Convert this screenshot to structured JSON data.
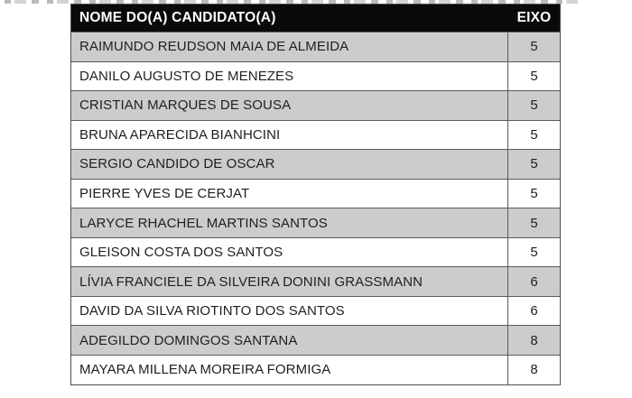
{
  "table": {
    "header": {
      "name_label": "NOME DO(A) CANDIDATO(A)",
      "eixo_label": "EIXO"
    },
    "rows": [
      {
        "name": "RAIMUNDO REUDSON MAIA DE ALMEIDA",
        "eixo": "5"
      },
      {
        "name": "DANILO AUGUSTO DE MENEZES",
        "eixo": "5"
      },
      {
        "name": "CRISTIAN MARQUES DE SOUSA",
        "eixo": "5"
      },
      {
        "name": "BRUNA APARECIDA BIANHCINI",
        "eixo": "5"
      },
      {
        "name": "SERGIO CANDIDO DE OSCAR",
        "eixo": "5"
      },
      {
        "name": "PIERRE YVES DE CERJAT",
        "eixo": "5"
      },
      {
        "name": "LARYCE RHACHEL MARTINS SANTOS",
        "eixo": "5"
      },
      {
        "name": "GLEISON COSTA DOS SANTOS",
        "eixo": "5"
      },
      {
        "name": "LÍVIA FRANCIELE DA SILVEIRA DONINI GRASSMANN",
        "eixo": "6"
      },
      {
        "name": "DAVID DA SILVA RIOTINTO DOS SANTOS",
        "eixo": "6"
      },
      {
        "name": "ADEGILDO DOMINGOS SANTANA",
        "eixo": "8"
      },
      {
        "name": "MAYARA MILLENA MOREIRA FORMIGA",
        "eixo": "8"
      }
    ],
    "colors": {
      "header_bg": "#0a0a0a",
      "header_text": "#ffffff",
      "row_alt_bg": "#cccccc",
      "row_bg": "#ffffff",
      "border": "#5a5a5a",
      "text": "#1f1f1f"
    }
  }
}
